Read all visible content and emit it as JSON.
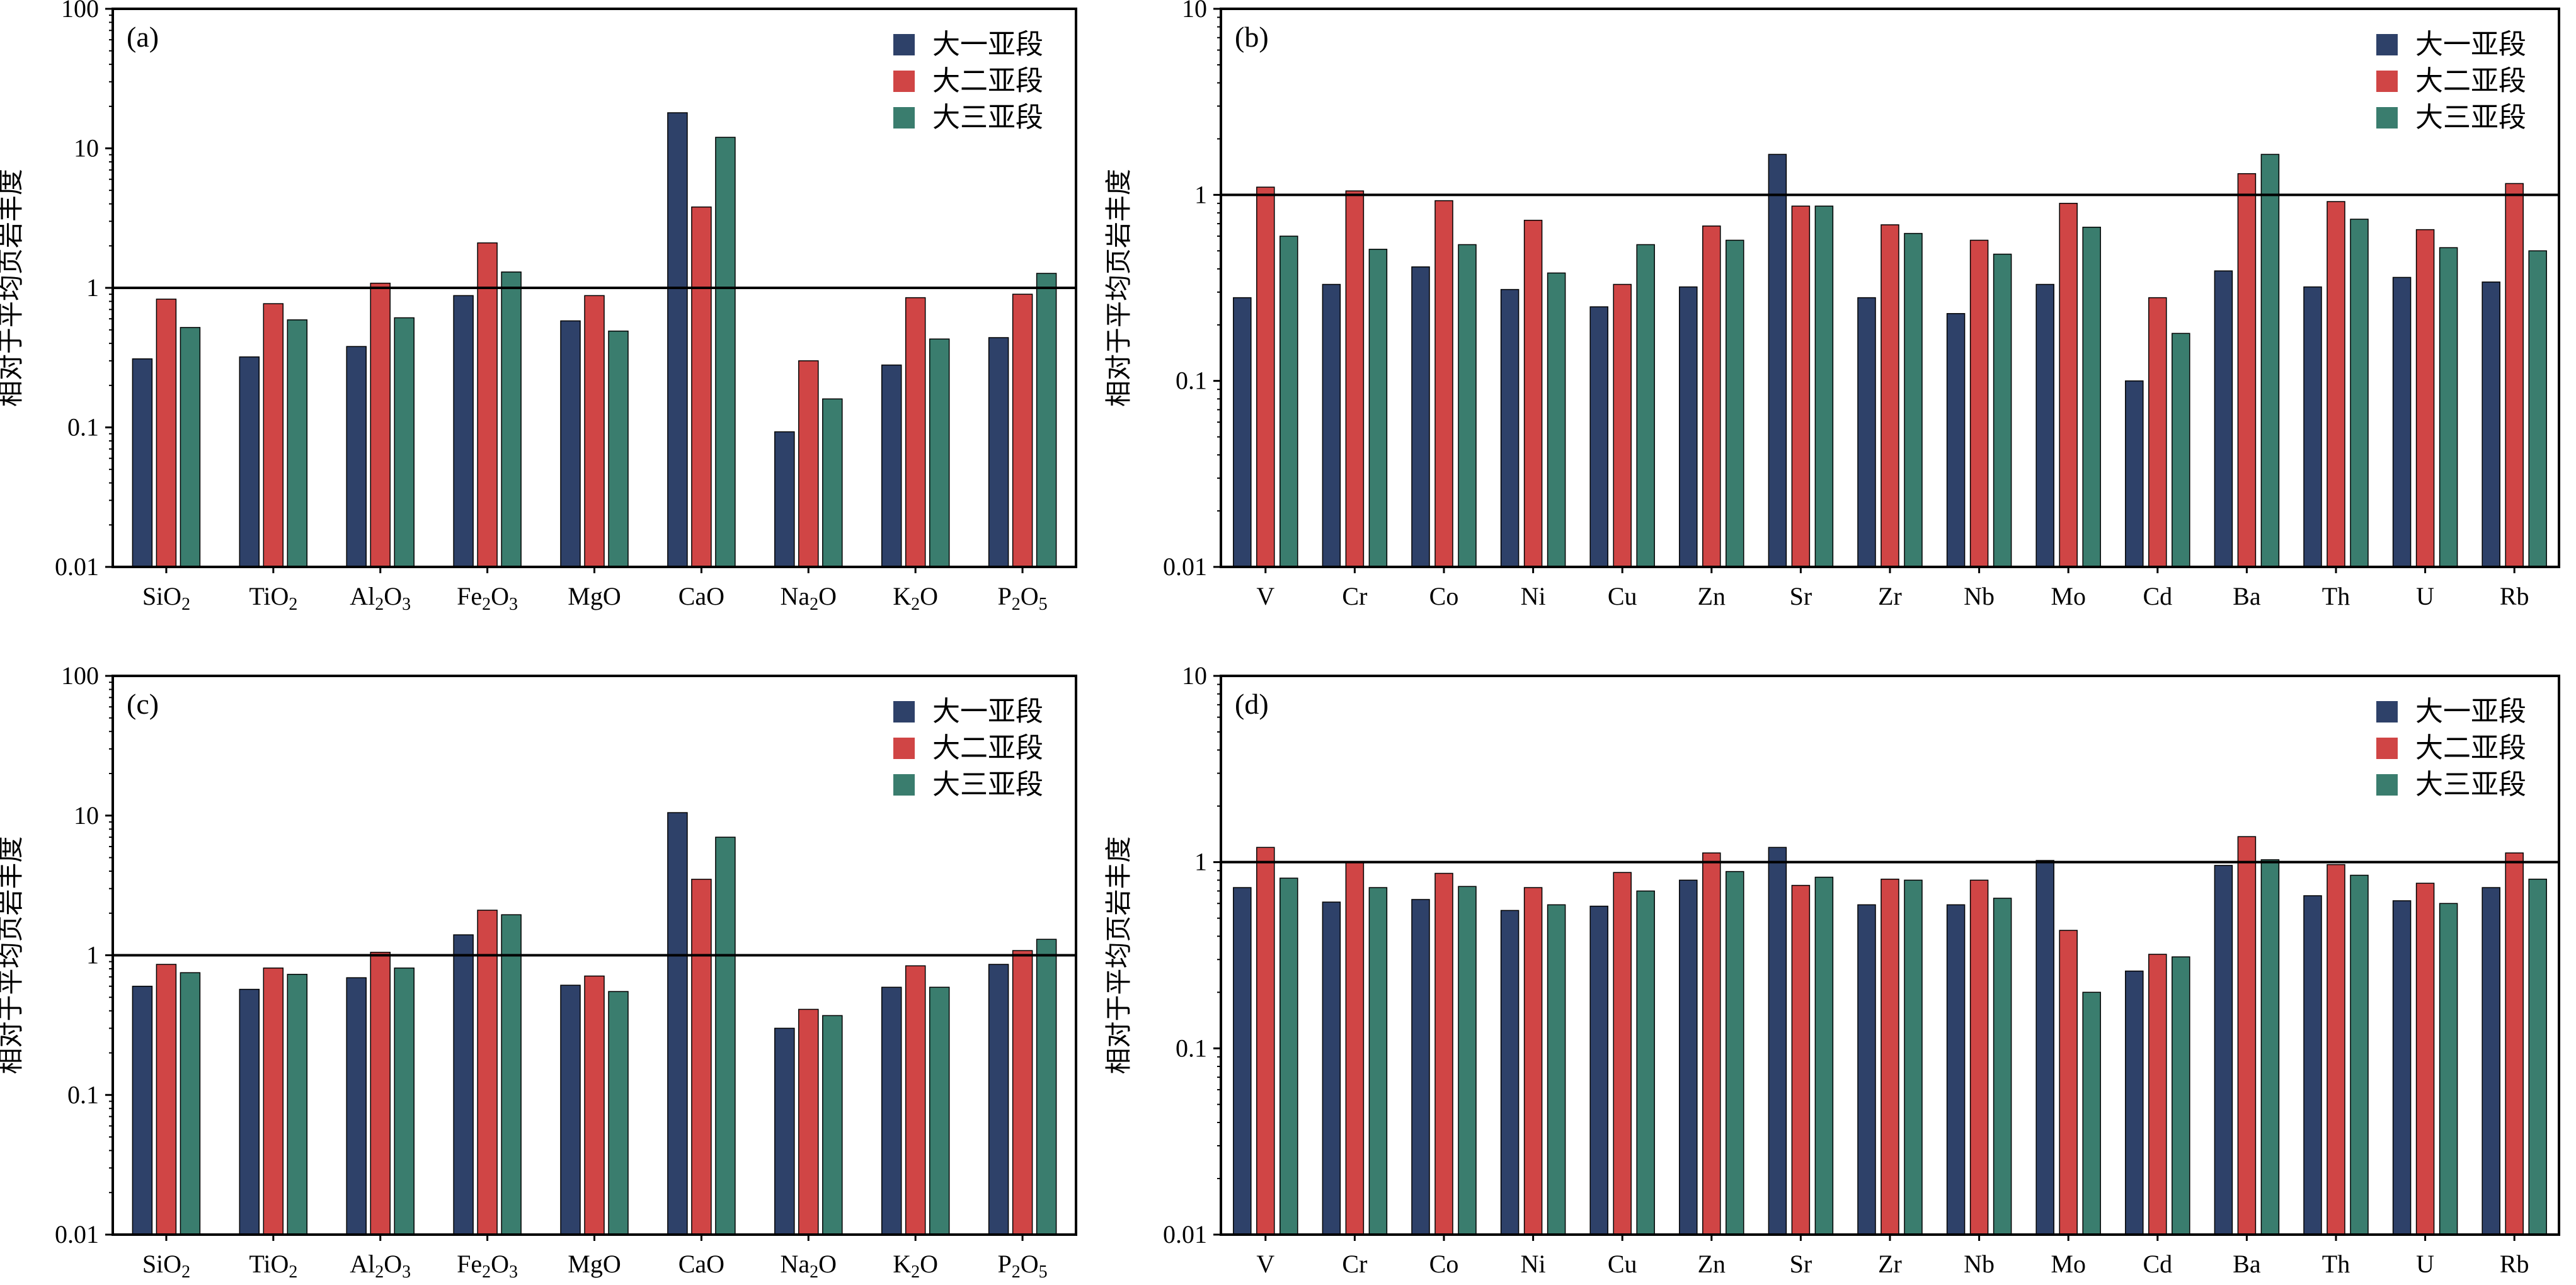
{
  "colors": {
    "da1": "#2e4169",
    "da2": "#d04545",
    "da3": "#3a7d6e",
    "axis": "#000000"
  },
  "ylabel": "相对于平均页岩丰度",
  "legend": [
    "大一亚段",
    "大二亚段",
    "大三亚段"
  ],
  "chart_data": [
    {
      "type": "bar",
      "panel_label": "(a)",
      "scale": "log",
      "ylim": [
        0.01,
        100
      ],
      "yticks": [
        "0.01",
        "0.1",
        "1",
        "10",
        "100"
      ],
      "reference_line": 1,
      "categories": [
        "SiO2",
        "TiO2",
        "Al2O3",
        "Fe2O3",
        "MgO",
        "CaO",
        "Na2O",
        "K2O",
        "P2O5"
      ],
      "series": [
        {
          "name": "大一亚段",
          "values": [
            0.31,
            0.32,
            0.38,
            0.88,
            0.58,
            18.0,
            0.093,
            0.28,
            0.44
          ]
        },
        {
          "name": "大二亚段",
          "values": [
            0.83,
            0.77,
            1.08,
            2.1,
            0.88,
            3.8,
            0.3,
            0.85,
            0.9
          ]
        },
        {
          "name": "大三亚段",
          "values": [
            0.52,
            0.59,
            0.61,
            1.3,
            0.49,
            12.0,
            0.16,
            0.43,
            1.27
          ]
        }
      ]
    },
    {
      "type": "bar",
      "panel_label": "(b)",
      "scale": "log",
      "ylim": [
        0.01,
        10
      ],
      "yticks": [
        "0.01",
        "0.1",
        "1",
        "10"
      ],
      "reference_line": 1,
      "categories": [
        "V",
        "Cr",
        "Co",
        "Ni",
        "Cu",
        "Zn",
        "Sr",
        "Zr",
        "Nb",
        "Mo",
        "Cd",
        "Ba",
        "Th",
        "U",
        "Rb"
      ],
      "series": [
        {
          "name": "大一亚段",
          "values": [
            0.28,
            0.33,
            0.41,
            0.31,
            0.25,
            0.32,
            1.65,
            0.28,
            0.23,
            0.33,
            0.1,
            0.39,
            0.32,
            0.36,
            0.34
          ]
        },
        {
          "name": "大二亚段",
          "values": [
            1.1,
            1.05,
            0.93,
            0.73,
            0.33,
            0.68,
            0.87,
            0.69,
            0.57,
            0.9,
            0.28,
            1.3,
            0.92,
            0.65,
            1.15
          ]
        },
        {
          "name": "大三亚段",
          "values": [
            0.6,
            0.51,
            0.54,
            0.38,
            0.54,
            0.57,
            0.87,
            0.62,
            0.48,
            0.67,
            0.18,
            1.65,
            0.74,
            0.52,
            0.5
          ]
        }
      ]
    },
    {
      "type": "bar",
      "panel_label": "(c)",
      "scale": "log",
      "ylim": [
        0.01,
        100
      ],
      "yticks": [
        "0.01",
        "0.1",
        "1",
        "10",
        "100"
      ],
      "reference_line": 1,
      "categories": [
        "SiO2",
        "TiO2",
        "Al2O3",
        "Fe2O3",
        "MgO",
        "CaO",
        "Na2O",
        "K2O",
        "P2O5"
      ],
      "series": [
        {
          "name": "大一亚段",
          "values": [
            0.6,
            0.57,
            0.69,
            1.4,
            0.61,
            10.5,
            0.3,
            0.59,
            0.86
          ]
        },
        {
          "name": "大二亚段",
          "values": [
            0.86,
            0.81,
            1.05,
            2.1,
            0.71,
            3.5,
            0.41,
            0.84,
            1.08
          ]
        },
        {
          "name": "大三亚段",
          "values": [
            0.75,
            0.73,
            0.81,
            1.95,
            0.55,
            7.0,
            0.37,
            0.59,
            1.3
          ]
        }
      ]
    },
    {
      "type": "bar",
      "panel_label": "(d)",
      "scale": "log",
      "ylim": [
        0.01,
        10
      ],
      "yticks": [
        "0.01",
        "0.1",
        "1",
        "10"
      ],
      "reference_line": 1,
      "categories": [
        "V",
        "Cr",
        "Co",
        "Ni",
        "Cu",
        "Zn",
        "Sr",
        "Zr",
        "Nb",
        "Mo",
        "Cd",
        "Ba",
        "Th",
        "U",
        "Rb"
      ],
      "series": [
        {
          "name": "大一亚段",
          "values": [
            0.73,
            0.61,
            0.63,
            0.55,
            0.58,
            0.8,
            1.2,
            0.59,
            0.59,
            1.02,
            0.26,
            0.96,
            0.66,
            0.62,
            0.73
          ]
        },
        {
          "name": "大二亚段",
          "values": [
            1.2,
            1.0,
            0.87,
            0.73,
            0.88,
            1.12,
            0.75,
            0.81,
            0.8,
            0.43,
            0.32,
            1.37,
            0.97,
            0.77,
            1.12
          ]
        },
        {
          "name": "大三亚段",
          "values": [
            0.82,
            0.73,
            0.74,
            0.59,
            0.7,
            0.89,
            0.83,
            0.8,
            0.64,
            0.2,
            0.31,
            1.03,
            0.85,
            0.6,
            0.81
          ]
        }
      ]
    }
  ]
}
